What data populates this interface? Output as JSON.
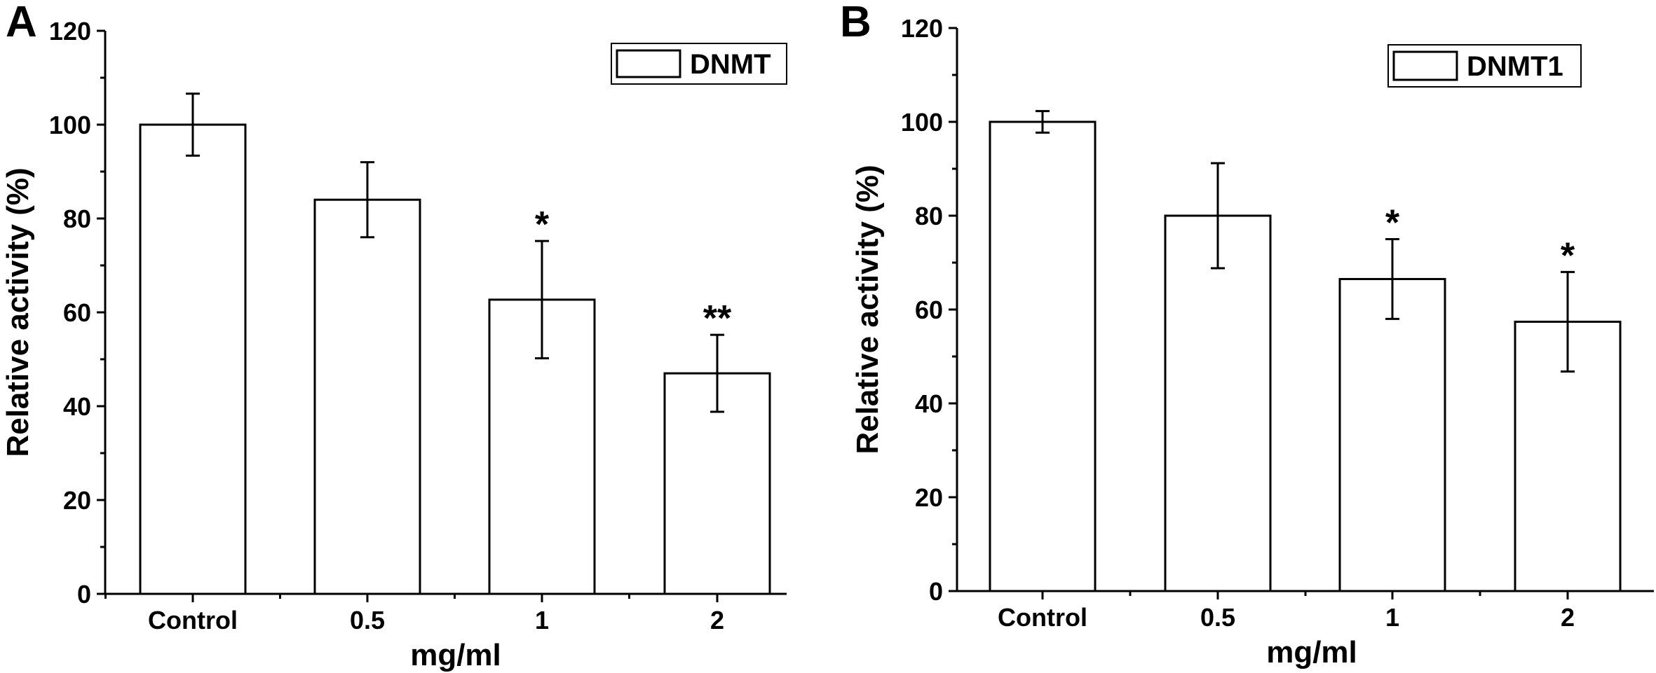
{
  "chart_data": [
    {
      "panel": "A",
      "type": "bar",
      "categories": [
        "Control",
        "0.5",
        "1",
        "2"
      ],
      "values": [
        100,
        84,
        62.7,
        47
      ],
      "errors": [
        6.6,
        8,
        12.5,
        8.2
      ],
      "significance": [
        "",
        "",
        "*",
        "**"
      ],
      "series": [
        {
          "name": "DNMT",
          "values": [
            100,
            84,
            62.7,
            47
          ]
        }
      ],
      "xlabel": "mg/ml",
      "ylabel": "Relative activity (%)",
      "ylim": [
        0,
        120
      ],
      "yticks": [
        0,
        20,
        40,
        60,
        80,
        100,
        120
      ],
      "legend": {
        "position": "top-right",
        "entries": [
          "DNMT"
        ]
      },
      "grid": false
    },
    {
      "panel": "B",
      "type": "bar",
      "categories": [
        "Control",
        "0.5",
        "1",
        "2"
      ],
      "values": [
        100,
        80,
        66.5,
        57.4
      ],
      "errors": [
        2.3,
        11.2,
        8.5,
        10.6
      ],
      "significance": [
        "",
        "",
        "*",
        "*"
      ],
      "series": [
        {
          "name": "DNMT1",
          "values": [
            100,
            80,
            66.5,
            57.4
          ]
        }
      ],
      "xlabel": "mg/ml",
      "ylabel": "Relative activity (%)",
      "ylim": [
        0,
        120
      ],
      "yticks": [
        0,
        20,
        40,
        60,
        80,
        100,
        120
      ],
      "legend": {
        "position": "top-right",
        "entries": [
          "DNMT1"
        ]
      },
      "grid": false
    }
  ]
}
